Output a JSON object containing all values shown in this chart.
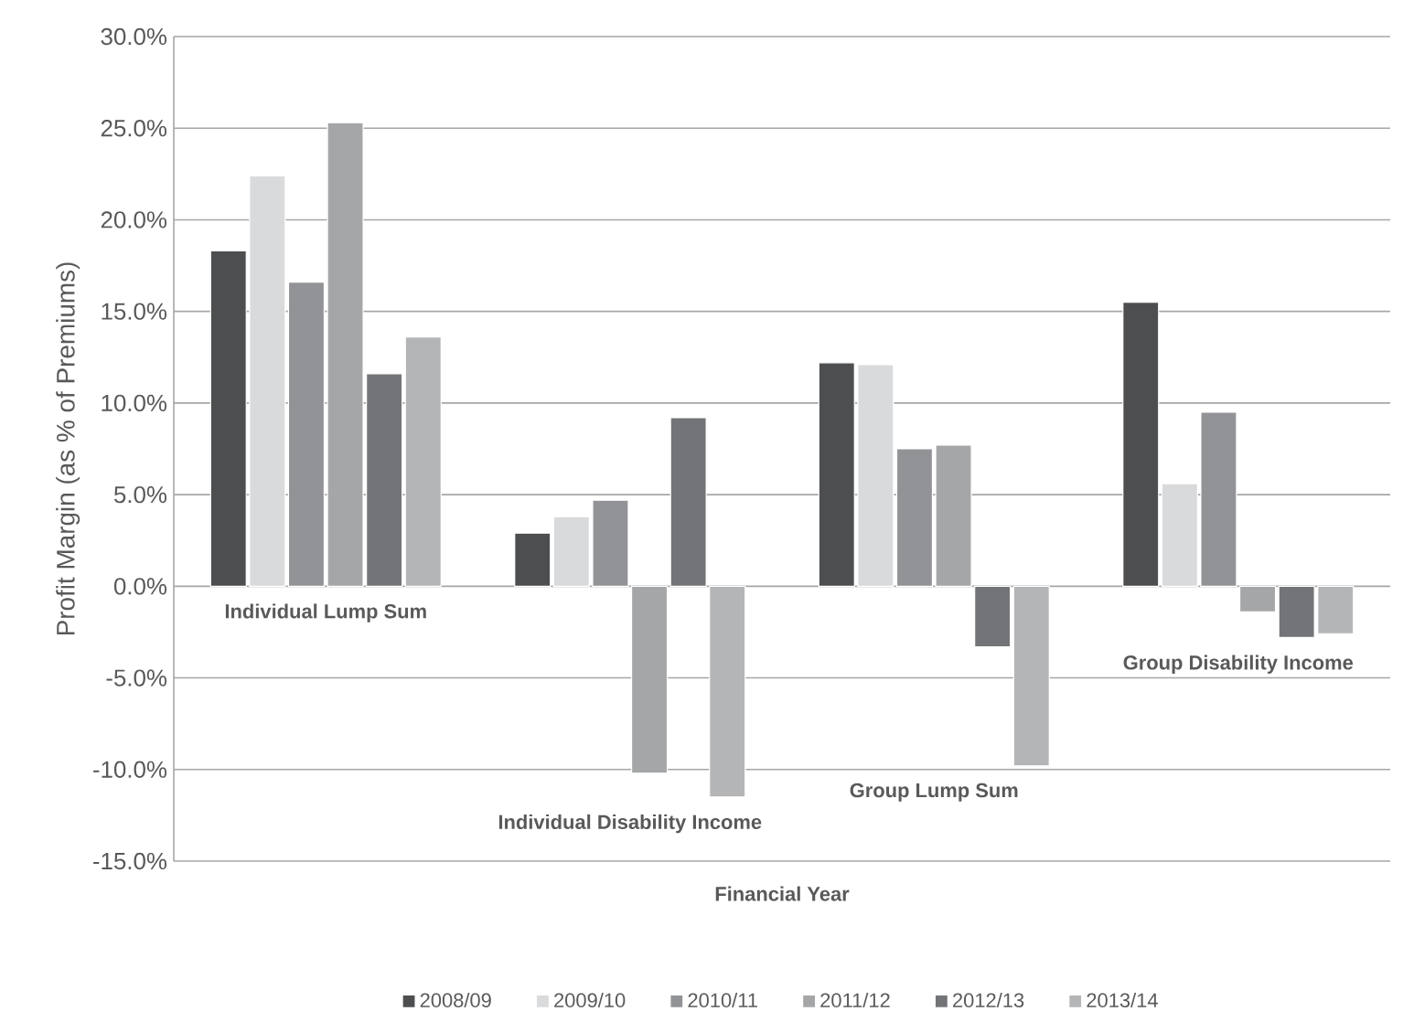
{
  "chart_data": {
    "type": "bar",
    "xlabel": "Financial Year",
    "ylabel": "Profit Margin (as % of Premiums)",
    "categories": [
      "Individual Lump Sum",
      "Individual Disability Income",
      "Group Lump Sum",
      "Group Disability Income"
    ],
    "series": [
      {
        "name": "2008/09",
        "color": "#4d4e50",
        "values": [
          18.3,
          2.9,
          12.2,
          15.5
        ]
      },
      {
        "name": "2009/10",
        "color": "#d9dadc",
        "values": [
          22.4,
          3.8,
          12.1,
          5.6
        ]
      },
      {
        "name": "2010/11",
        "color": "#929396",
        "values": [
          16.6,
          4.7,
          7.5,
          9.5
        ]
      },
      {
        "name": "2011/12",
        "color": "#a5a6a8",
        "values": [
          25.3,
          -10.2,
          7.7,
          -1.4
        ]
      },
      {
        "name": "2012/13",
        "color": "#737477",
        "values": [
          11.6,
          9.2,
          -3.3,
          -2.8
        ]
      },
      {
        "name": "2013/14",
        "color": "#b4b5b7",
        "values": [
          13.6,
          -11.5,
          -9.8,
          -2.6
        ]
      }
    ],
    "ylim": [
      -15,
      30
    ],
    "yticks": [
      {
        "value": -15,
        "label": "-15.0%"
      },
      {
        "value": -10,
        "label": "-10.0%"
      },
      {
        "value": -5,
        "label": "-5.0%"
      },
      {
        "value": 0,
        "label": "0.0%"
      },
      {
        "value": 5,
        "label": "5.0%"
      },
      {
        "value": 10,
        "label": "10.0%"
      },
      {
        "value": 15,
        "label": "15.0%"
      },
      {
        "value": 20,
        "label": "20.0%"
      },
      {
        "value": 25,
        "label": "25.0%"
      },
      {
        "value": 30,
        "label": "30.0%"
      }
    ],
    "grid": "y",
    "legend": "bottom"
  }
}
